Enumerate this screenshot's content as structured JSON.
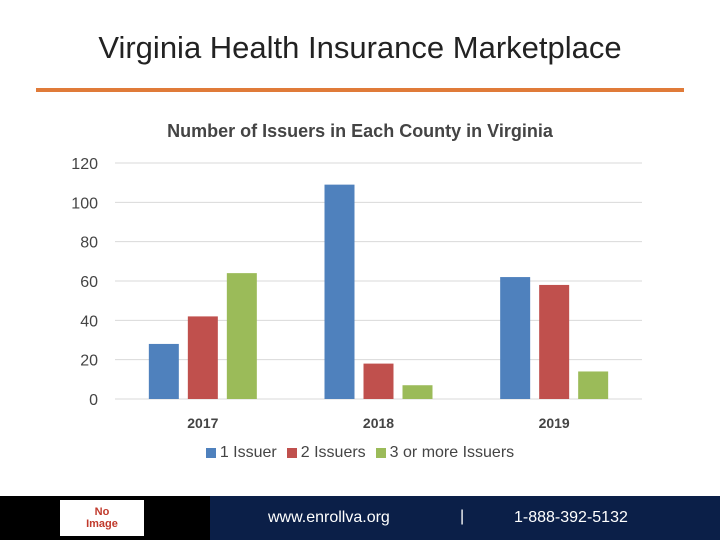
{
  "slide": {
    "title": "Virginia Health Insurance Marketplace",
    "accent_color": "#E07B39"
  },
  "chart_data": {
    "type": "bar",
    "title": "Number of Issuers in Each County in Virginia",
    "categories": [
      "2017",
      "2018",
      "2019"
    ],
    "series": [
      {
        "name": "1 Issuer",
        "values": [
          28,
          109,
          62
        ],
        "color": "#4F81BD"
      },
      {
        "name": "2 Issuers",
        "values": [
          42,
          18,
          58
        ],
        "color": "#C0504D"
      },
      {
        "name": "3 or more Issuers",
        "values": [
          64,
          7,
          14
        ],
        "color": "#9BBB59"
      }
    ],
    "ylim": [
      0,
      120
    ],
    "yticks": [
      "0",
      "20",
      "40",
      "60",
      "80",
      "100",
      "120"
    ],
    "grid": true,
    "legend": "bottom"
  },
  "footer": {
    "logo_line1": "No",
    "logo_line2": "Image",
    "url": "www.enrollva.org",
    "separator": "|",
    "phone": "1-888-392-5132"
  }
}
